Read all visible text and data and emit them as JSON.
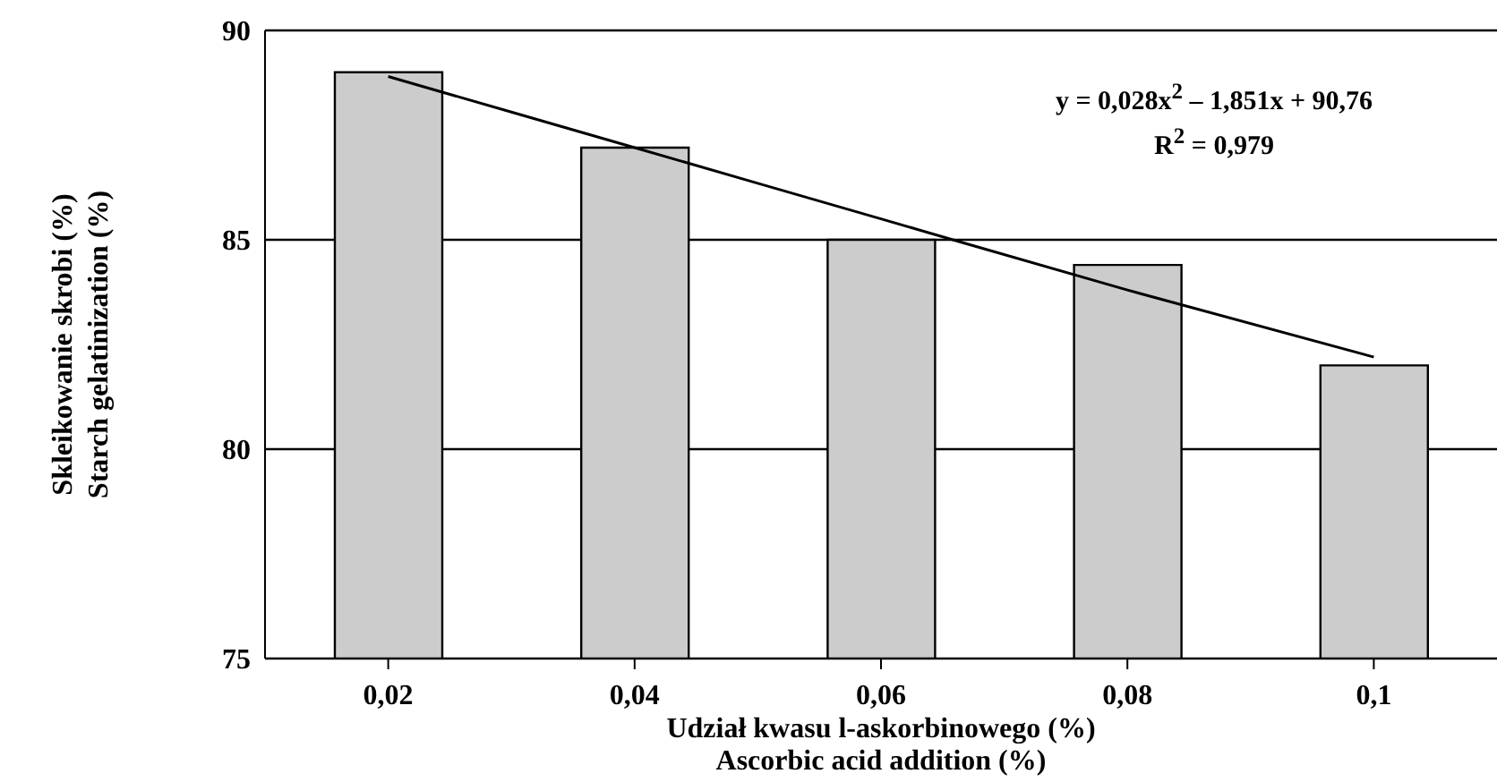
{
  "chart_data": {
    "type": "bar",
    "xlabel": "Udział  kwasu l-askorbinowego (%)\nAscorbic acid addition (%)",
    "ylabel": "Skleikowanie skrobi (%)\nStarch gelatinization (%)",
    "categories": [
      "0,02",
      "0,04",
      "0,06",
      "0,08",
      "0,1"
    ],
    "series": [
      {
        "color": "#cccccc",
        "values": [
          89.0,
          87.2,
          85.0,
          84.4,
          82.0
        ]
      },
      {
        "type": "line",
        "color": "#000000",
        "values": [
          88.9,
          87.2,
          85.5,
          83.8,
          82.2
        ]
      }
    ],
    "ylim": [
      75,
      90
    ],
    "yticks": [
      75,
      80,
      85,
      90
    ],
    "grid": "y",
    "legend": false,
    "marker": "none",
    "line_style": "solid",
    "annotations": [
      "y = 0,028x$^{2}$ – 1,851x + 90,76\nR$^{2}$ = 0,979"
    ]
  }
}
